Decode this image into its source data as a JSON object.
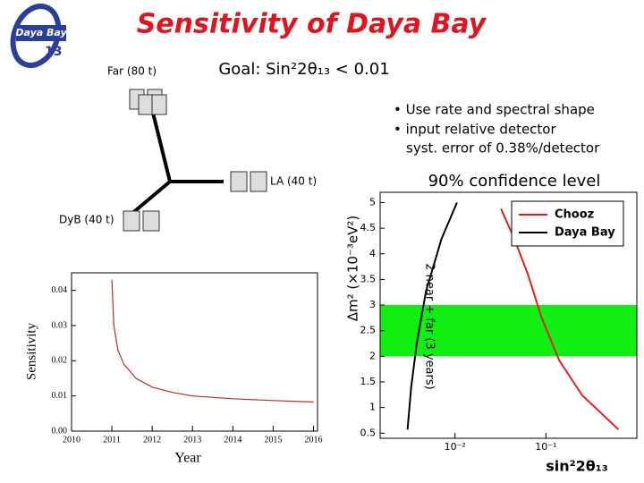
{
  "logo": {
    "text": "Daya Bay",
    "number": "13"
  },
  "title": "Sensitivity of Daya Bay",
  "goal": "Goal: Sin²2θ₁₃ < 0.01",
  "sites": {
    "far": "Far (80 t)",
    "la": "LA (40 t)",
    "dyb": "DyB (40 t)"
  },
  "bullets": [
    "• Use rate and spectral shape",
    "• input relative detector",
    "syst. error of 0.38%/detector"
  ],
  "chart_data": [
    {
      "type": "line",
      "x_label": "Year",
      "y_label": "Sensitivity",
      "xlim": [
        2010,
        2016.1
      ],
      "ylim": [
        0,
        0.045
      ],
      "xticks": [
        2010,
        2011,
        2012,
        2013,
        2014,
        2015,
        2016
      ],
      "yticks": [
        {
          "value": 0,
          "label": "0.00"
        },
        0.01,
        0.02,
        0.03,
        0.04
      ],
      "series": [
        {
          "color": "#c0282a",
          "x": [
            2011,
            2011.05,
            2011.15,
            2011.3,
            2011.6,
            2012,
            2012.5,
            2013,
            2014,
            2015,
            2016
          ],
          "values": [
            0.043,
            0.03,
            0.023,
            0.019,
            0.015,
            0.0125,
            0.011,
            0.01,
            0.0092,
            0.0087,
            0.0083
          ]
        }
      ]
    },
    {
      "type": "line",
      "title": "90% confidence level",
      "annotation": "2 near + far (3 years)",
      "x_label": "sin²2θ₁₃",
      "y_label": "Δm² (×10⁻³eV²)",
      "xlog": true,
      "xlim": [
        0.0015,
        1.0
      ],
      "ylim": [
        0.4,
        5.2
      ],
      "xticks": [
        {
          "value": 0.01,
          "label": "10⁻²"
        },
        {
          "value": 0.1,
          "label": "10⁻¹"
        }
      ],
      "yticks": [
        0.5,
        1,
        1.5,
        2,
        2.5,
        3,
        3.5,
        4,
        4.5,
        5
      ],
      "band": {
        "y": [
          2,
          3
        ],
        "color": "#11ee11"
      },
      "legend": "upper right",
      "series": [
        {
          "name": "Chooz",
          "color": "#e02020",
          "x": [
            0.032,
            0.045,
            0.063,
            0.089,
            0.14,
            0.25,
            0.63
          ],
          "values": [
            4.88,
            4.29,
            3.61,
            2.77,
            1.92,
            1.24,
            0.57
          ]
        },
        {
          "name": "Daya Bay",
          "color": "#000000",
          "x": [
            0.0105,
            0.0071,
            0.0048,
            0.0038,
            0.0033,
            0.003
          ],
          "values": [
            5,
            4.29,
            3.27,
            2.26,
            1.41,
            0.57
          ]
        }
      ]
    }
  ]
}
